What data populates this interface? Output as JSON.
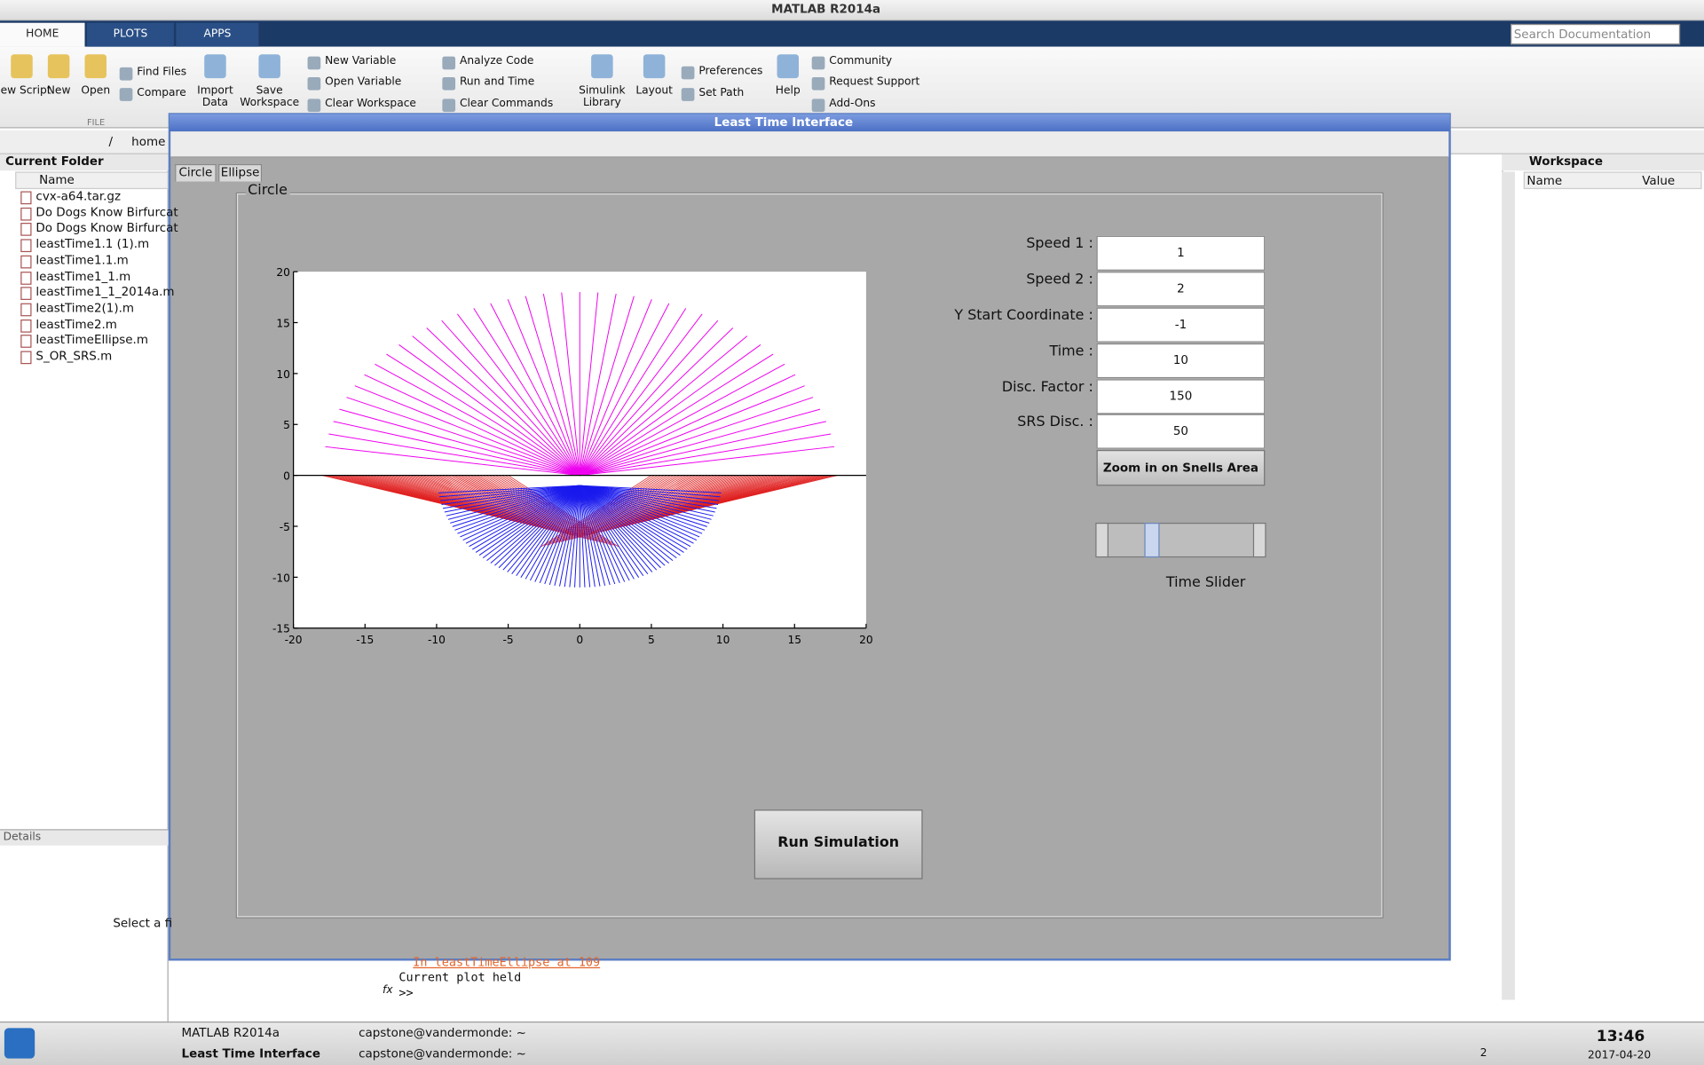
{
  "window_title": "MATLAB R2014a",
  "ribbon": {
    "tabs": [
      "HOME",
      "PLOTS",
      "APPS"
    ],
    "search_placeholder": "Search Documentation",
    "large_buttons": [
      "New Script",
      "New",
      "Open",
      "Import Data",
      "Save Workspace",
      "Simulink Library",
      "Layout",
      "Help"
    ],
    "small_buttons": [
      "Find Files",
      "Compare",
      "New Variable",
      "Open Variable",
      "Clear Workspace",
      "Analyze Code",
      "Run and Time",
      "Clear Commands",
      "Preferences",
      "Set Path",
      "Community",
      "Request Support",
      "Add-Ons"
    ],
    "section": "FILE"
  },
  "address_bar": [
    "/",
    "home"
  ],
  "current_folder": {
    "title": "Current Folder",
    "column": "Name",
    "files": [
      "cvx-a64.tar.gz",
      "Do Dogs Know Birfurcat",
      "Do Dogs Know Birfurcat",
      "leastTime1.1 (1).m",
      "leastTime1.1.m",
      "leastTime1_1.m",
      "leastTime1_1_2014a.m",
      "leastTime2(1).m",
      "leastTime2.m",
      "leastTimeEllipse.m",
      "S_OR_SRS.m"
    ],
    "details_title": "Details",
    "details_text": "Select a fi"
  },
  "workspace": {
    "title": "Workspace",
    "columns": [
      "Name",
      "Value"
    ]
  },
  "command_window": {
    "lines": [
      "In leastTimeEllipse at 109",
      "Current plot held"
    ],
    "prompt": ">>",
    "fx": "fx"
  },
  "figure": {
    "title": "Least Time Interface",
    "tabs": [
      "Circle",
      "Ellipse"
    ],
    "panel_title": "Circle",
    "fields": [
      {
        "label": "Speed 1 :",
        "value": "1"
      },
      {
        "label": "Speed 2 :",
        "value": "2"
      },
      {
        "label": "Y Start Coordinate :",
        "value": "-1"
      },
      {
        "label": "Time :",
        "value": "10"
      },
      {
        "label": "Disc. Factor :",
        "value": "150"
      },
      {
        "label": "SRS Disc. :",
        "value": "50"
      }
    ],
    "zoom_button": "Zoom in on Snells Area",
    "slider_label": "Time Slider",
    "run_button": "Run Simulation",
    "plot": {
      "xlim": [
        -20,
        20
      ],
      "ylim": [
        -15,
        20
      ],
      "xticks": [
        -20,
        -15,
        -10,
        -5,
        0,
        5,
        10,
        15,
        20
      ],
      "yticks": [
        -15,
        -10,
        -5,
        0,
        5,
        10,
        15,
        20
      ]
    }
  },
  "taskbar": {
    "windows": [
      "MATLAB R2014a",
      "Least Time Interface",
      "capstone@vandermonde: ~",
      "capstone@vandermonde: ~"
    ],
    "desktop": "2",
    "time": "13:46",
    "date": "2017-04-20"
  }
}
